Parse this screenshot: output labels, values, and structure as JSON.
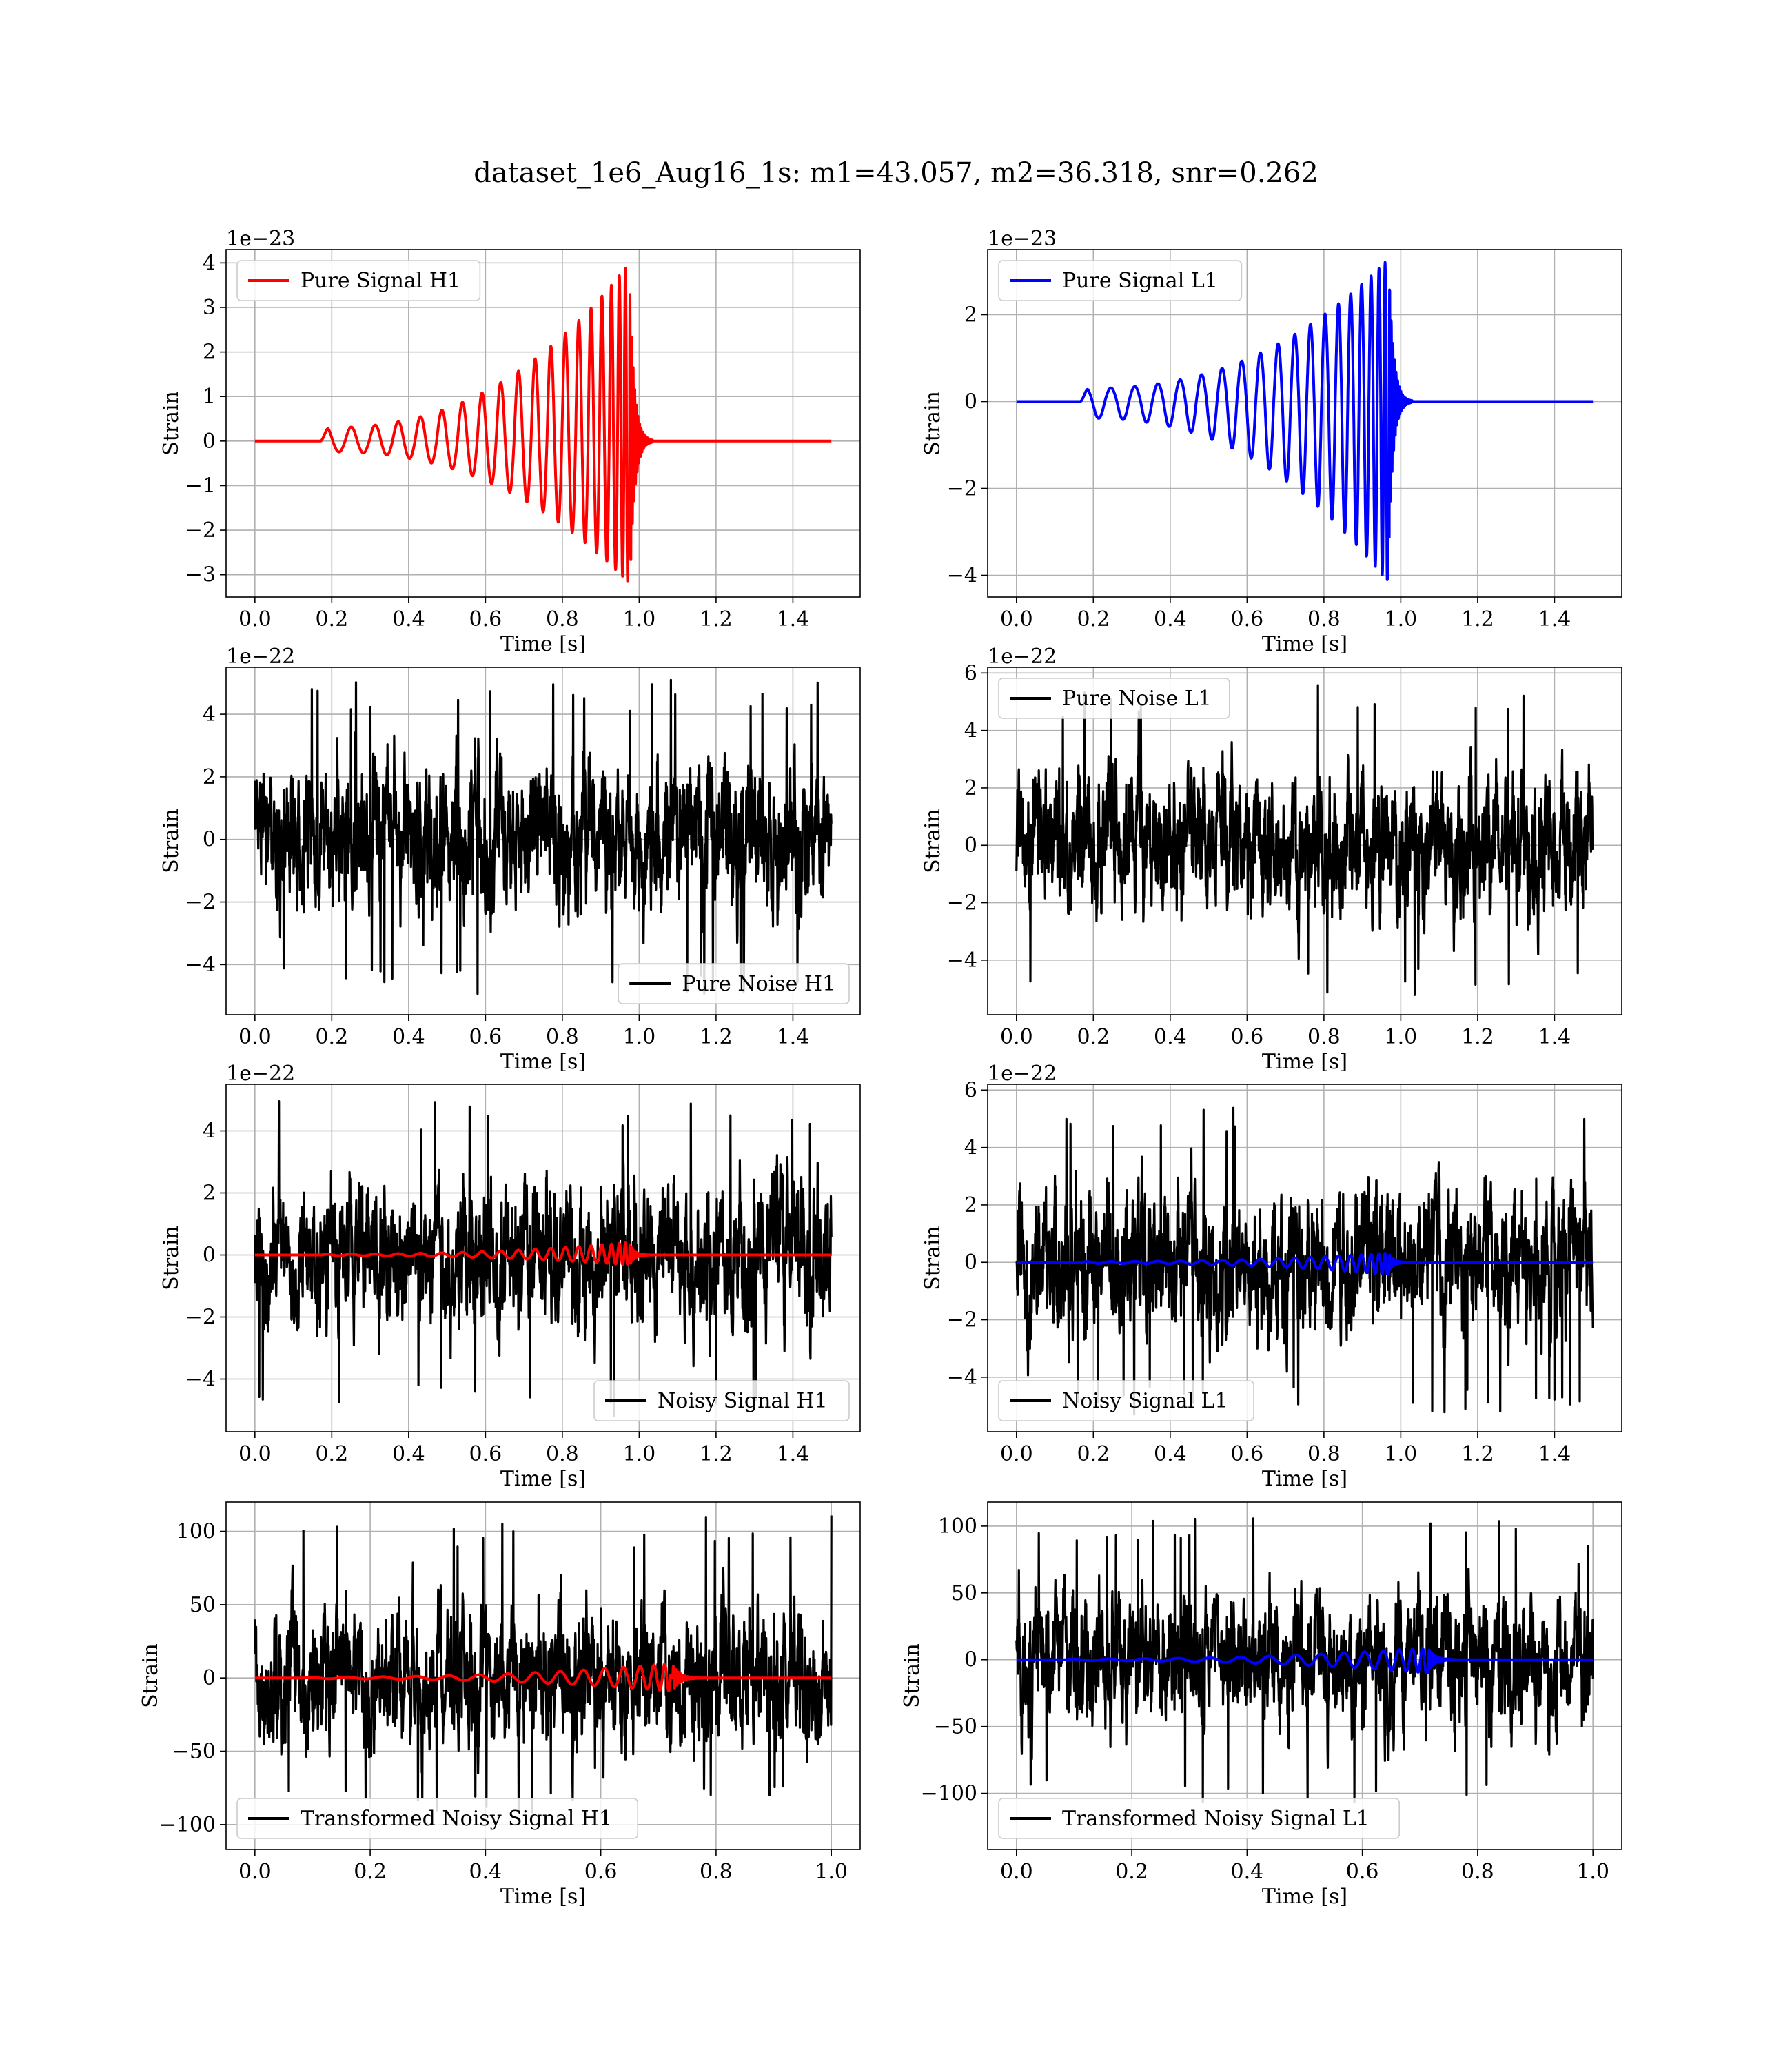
{
  "title": "dataset_1e6_Aug16_1s: m1=43.057, m2=36.318, snr=0.262",
  "colors": {
    "signal_h1": "#ff0000",
    "signal_l1": "#0000ff",
    "noise": "#000000",
    "grid": "#b0b0b0"
  },
  "chart_data": [
    {
      "id": "pure-signal-h1",
      "type": "line",
      "xlabel": "Time [s]",
      "ylabel": "Strain",
      "offset_text": "1e−23",
      "xlim": [
        -0.075,
        1.575
      ],
      "ylim": [
        -3.5,
        4.3
      ],
      "xticks": [
        0.0,
        0.2,
        0.4,
        0.6,
        0.8,
        1.0,
        1.2,
        1.4
      ],
      "xtick_labels": [
        "0.0",
        "0.2",
        "0.4",
        "0.6",
        "0.8",
        "1.0",
        "1.2",
        "1.4"
      ],
      "yticks": [
        -3,
        -2,
        -1,
        0,
        1,
        2,
        3,
        4
      ],
      "ytick_labels": [
        "−3",
        "−2",
        "−1",
        "0",
        "1",
        "2",
        "3",
        "4"
      ],
      "legend_position": "upper-left",
      "series": [
        {
          "name": "Pure Signal H1",
          "kind": "chirp",
          "color": "#ff0000",
          "x_range": [
            0.0,
            1.5
          ],
          "onset": 0.17,
          "merger": 0.975,
          "peak": 4.0,
          "trough": -3.2,
          "base_amplitude": 0.3
        }
      ]
    },
    {
      "id": "pure-signal-l1",
      "type": "line",
      "xlabel": "Time [s]",
      "ylabel": "Strain",
      "offset_text": "1e−23",
      "xlim": [
        -0.075,
        1.575
      ],
      "ylim": [
        -4.5,
        3.5
      ],
      "xticks": [
        0.0,
        0.2,
        0.4,
        0.6,
        0.8,
        1.0,
        1.2,
        1.4
      ],
      "xtick_labels": [
        "0.0",
        "0.2",
        "0.4",
        "0.6",
        "0.8",
        "1.0",
        "1.2",
        "1.4"
      ],
      "yticks": [
        -4,
        -2,
        0,
        2
      ],
      "ytick_labels": [
        "−4",
        "−2",
        "0",
        "2"
      ],
      "legend_position": "upper-left",
      "series": [
        {
          "name": "Pure Signal L1",
          "kind": "chirp",
          "color": "#0000ff",
          "x_range": [
            0.0,
            1.5
          ],
          "onset": 0.165,
          "merger": 0.97,
          "peak": 3.3,
          "trough": -4.2,
          "base_amplitude": 0.3
        }
      ]
    },
    {
      "id": "pure-noise-h1",
      "type": "line",
      "xlabel": "Time [s]",
      "ylabel": "Strain",
      "offset_text": "1e−22",
      "xlim": [
        -0.075,
        1.575
      ],
      "ylim": [
        -5.6,
        5.5
      ],
      "xticks": [
        0.0,
        0.2,
        0.4,
        0.6,
        0.8,
        1.0,
        1.2,
        1.4
      ],
      "xtick_labels": [
        "0.0",
        "0.2",
        "0.4",
        "0.6",
        "0.8",
        "1.0",
        "1.2",
        "1.4"
      ],
      "yticks": [
        -4,
        -2,
        0,
        2,
        4
      ],
      "ytick_labels": [
        "−4",
        "−2",
        "0",
        "2",
        "4"
      ],
      "legend_position": "lower-right",
      "series": [
        {
          "name": "Pure Noise H1",
          "kind": "noise",
          "color": "#000000",
          "x_range": [
            0.0,
            1.5
          ],
          "min": -5.0,
          "max": 5.1,
          "typical": 1.5
        }
      ]
    },
    {
      "id": "pure-noise-l1",
      "type": "line",
      "xlabel": "Time [s]",
      "ylabel": "Strain",
      "offset_text": "1e−22",
      "xlim": [
        -0.075,
        1.575
      ],
      "ylim": [
        -5.9,
        6.2
      ],
      "xticks": [
        0.0,
        0.2,
        0.4,
        0.6,
        0.8,
        1.0,
        1.2,
        1.4
      ],
      "xtick_labels": [
        "0.0",
        "0.2",
        "0.4",
        "0.6",
        "0.8",
        "1.0",
        "1.2",
        "1.4"
      ],
      "yticks": [
        -4,
        -2,
        0,
        2,
        4,
        6
      ],
      "ytick_labels": [
        "−4",
        "−2",
        "0",
        "2",
        "4",
        "6"
      ],
      "legend_position": "upper-left",
      "series": [
        {
          "name": "Pure Noise L1",
          "kind": "noise",
          "color": "#000000",
          "x_range": [
            0.0,
            1.5
          ],
          "min": -5.3,
          "max": 5.6,
          "typical": 1.6
        }
      ]
    },
    {
      "id": "noisy-signal-h1",
      "type": "line",
      "xlabel": "Time [s]",
      "ylabel": "Strain",
      "offset_text": "1e−22",
      "xlim": [
        -0.075,
        1.575
      ],
      "ylim": [
        -5.7,
        5.5
      ],
      "xticks": [
        0.0,
        0.2,
        0.4,
        0.6,
        0.8,
        1.0,
        1.2,
        1.4
      ],
      "xtick_labels": [
        "0.0",
        "0.2",
        "0.4",
        "0.6",
        "0.8",
        "1.0",
        "1.2",
        "1.4"
      ],
      "yticks": [
        -4,
        -2,
        0,
        2,
        4
      ],
      "ytick_labels": [
        "−4",
        "−2",
        "0",
        "2",
        "4"
      ],
      "legend_position": "lower-right",
      "series": [
        {
          "name": "Noisy Signal H1",
          "kind": "noise",
          "color": "#000000",
          "x_range": [
            0.0,
            1.5
          ],
          "min": -5.2,
          "max": 5.0,
          "typical": 1.5
        },
        {
          "kind": "chirp",
          "color": "#ff0000",
          "x_range": [
            0.0,
            1.5
          ],
          "onset": 0.17,
          "merger": 0.975,
          "peak": 0.4,
          "trough": -0.32,
          "base_amplitude": 0.03
        }
      ]
    },
    {
      "id": "noisy-signal-l1",
      "type": "line",
      "xlabel": "Time [s]",
      "ylabel": "Strain",
      "offset_text": "1e−22",
      "xlim": [
        -0.075,
        1.575
      ],
      "ylim": [
        -5.9,
        6.2
      ],
      "xticks": [
        0.0,
        0.2,
        0.4,
        0.6,
        0.8,
        1.0,
        1.2,
        1.4
      ],
      "xtick_labels": [
        "0.0",
        "0.2",
        "0.4",
        "0.6",
        "0.8",
        "1.0",
        "1.2",
        "1.4"
      ],
      "yticks": [
        -4,
        -2,
        0,
        2,
        4,
        6
      ],
      "ytick_labels": [
        "−4",
        "−2",
        "0",
        "2",
        "4",
        "6"
      ],
      "legend_position": "lower-left",
      "series": [
        {
          "name": "Noisy Signal L1",
          "kind": "noise",
          "color": "#000000",
          "x_range": [
            0.0,
            1.5
          ],
          "min": -5.3,
          "max": 5.6,
          "typical": 1.6
        },
        {
          "kind": "chirp",
          "color": "#0000ff",
          "x_range": [
            0.0,
            1.5
          ],
          "onset": 0.165,
          "merger": 0.97,
          "peak": 0.33,
          "trough": -0.42,
          "base_amplitude": 0.03
        }
      ]
    },
    {
      "id": "transformed-noisy-signal-h1",
      "type": "line",
      "xlabel": "Time [s]",
      "ylabel": "Strain",
      "offset_text": "",
      "xlim": [
        -0.05,
        1.05
      ],
      "ylim": [
        -117,
        120
      ],
      "xticks": [
        0.0,
        0.2,
        0.4,
        0.6,
        0.8,
        1.0
      ],
      "xtick_labels": [
        "0.0",
        "0.2",
        "0.4",
        "0.6",
        "0.8",
        "1.0"
      ],
      "yticks": [
        -100,
        -50,
        0,
        50,
        100
      ],
      "ytick_labels": [
        "−100",
        "−50",
        "0",
        "50",
        "100"
      ],
      "legend_position": "lower-left",
      "series": [
        {
          "name": "Transformed Noisy Signal H1",
          "kind": "noise",
          "color": "#000000",
          "x_range": [
            0.0,
            1.0
          ],
          "min": -92,
          "max": 111,
          "typical": 30
        },
        {
          "kind": "chirp",
          "color": "#ff0000",
          "x_range": [
            0.0,
            1.0
          ],
          "onset": 0.08,
          "merger": 0.725,
          "peak": 10,
          "trough": -9,
          "base_amplitude": 0.6
        }
      ]
    },
    {
      "id": "transformed-noisy-signal-l1",
      "type": "line",
      "xlabel": "Time [s]",
      "ylabel": "Strain",
      "offset_text": "",
      "xlim": [
        -0.05,
        1.05
      ],
      "ylim": [
        -142,
        118
      ],
      "xticks": [
        0.0,
        0.2,
        0.4,
        0.6,
        0.8,
        1.0
      ],
      "xtick_labels": [
        "0.0",
        "0.2",
        "0.4",
        "0.6",
        "0.8",
        "1.0"
      ],
      "yticks": [
        -100,
        -50,
        0,
        50,
        100
      ],
      "ytick_labels": [
        "−100",
        "−50",
        "0",
        "50",
        "100"
      ],
      "legend_position": "lower-left",
      "series": [
        {
          "name": "Transformed Noisy Signal L1",
          "kind": "noise",
          "color": "#000000",
          "x_range": [
            0.0,
            1.0
          ],
          "min": -112,
          "max": 106,
          "typical": 31
        },
        {
          "kind": "chirp",
          "color": "#0000ff",
          "x_range": [
            0.0,
            1.0
          ],
          "onset": 0.08,
          "merger": 0.715,
          "peak": 9,
          "trough": -10,
          "base_amplitude": 0.6
        }
      ]
    }
  ]
}
